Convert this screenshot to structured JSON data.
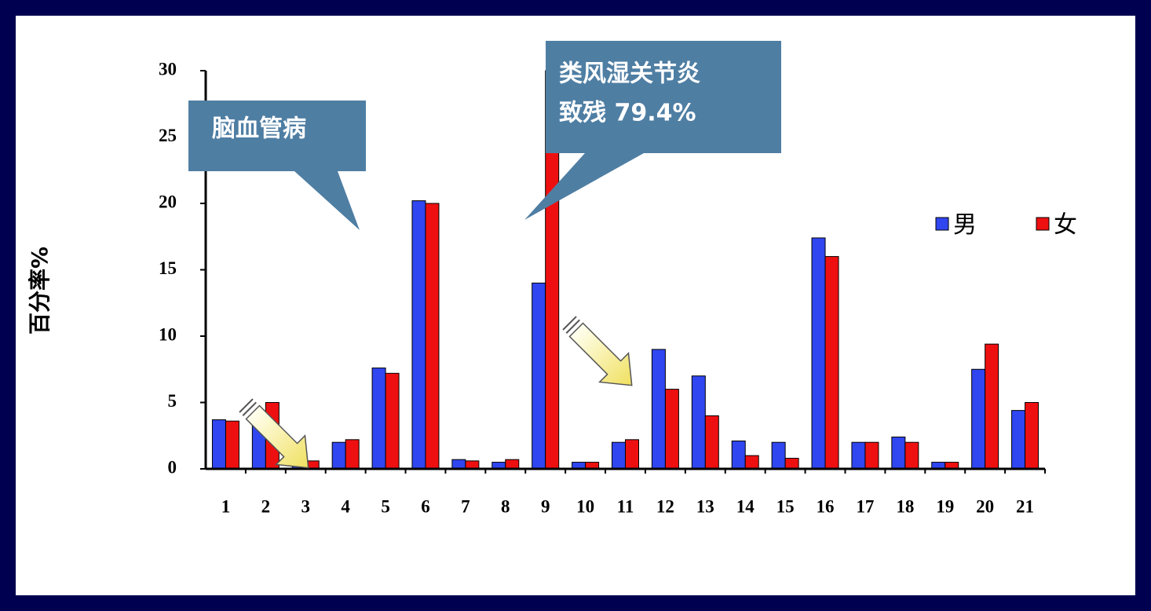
{
  "chart_data": {
    "type": "bar",
    "y_label": "百分率%",
    "annotations": [
      "脑血管病",
      "类风湿关节炎",
      "致残 79.4%"
    ],
    "categories": [
      "1",
      "2",
      "3",
      "4",
      "5",
      "6",
      "7",
      "8",
      "9",
      "10",
      "11",
      "12",
      "13",
      "14",
      "15",
      "16",
      "17",
      "18",
      "19",
      "20",
      "21"
    ],
    "series": [
      {
        "name": "男",
        "color": "#3046f0",
        "values": [
          3.7,
          4.0,
          0.5,
          2.0,
          7.6,
          20.2,
          0.7,
          0.5,
          14.0,
          0.5,
          2.0,
          9.0,
          7.0,
          2.1,
          2.0,
          17.4,
          2.0,
          2.4,
          0.5,
          7.5,
          4.4
        ]
      },
      {
        "name": "女",
        "color": "#ee1010",
        "values": [
          3.6,
          5.0,
          0.6,
          2.2,
          7.2,
          20.0,
          0.6,
          0.7,
          30,
          0.5,
          2.2,
          6.0,
          4.0,
          1.0,
          0.8,
          16.0,
          2.0,
          2.0,
          0.5,
          9.4,
          5.0
        ]
      }
    ],
    "ylim": [
      0,
      30
    ],
    "yticks": [
      0,
      5,
      10,
      15,
      20,
      25,
      30
    ]
  }
}
